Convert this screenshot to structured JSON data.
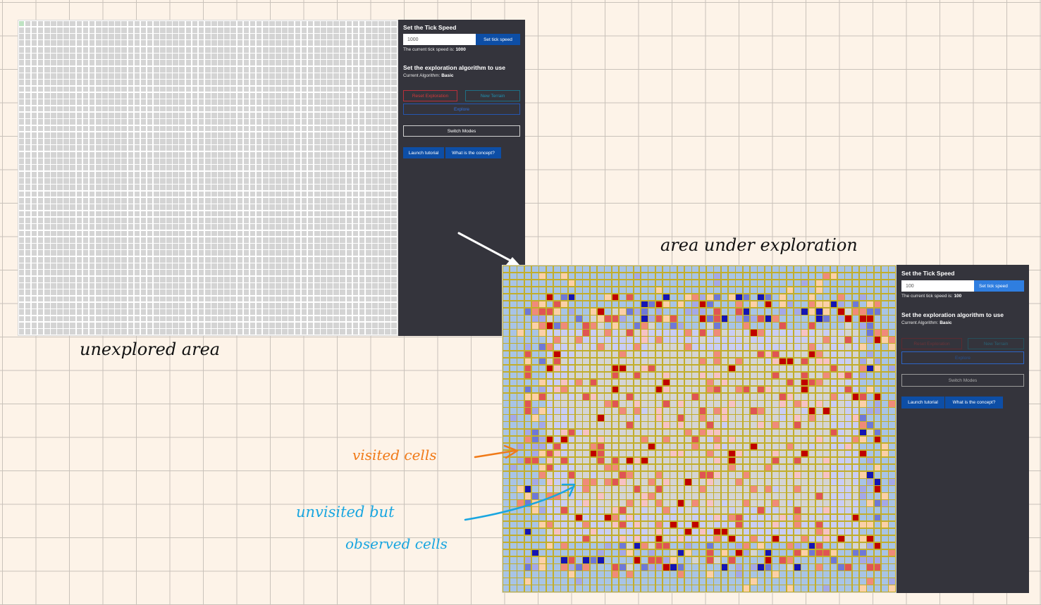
{
  "panel_unexplored": {
    "cols": 59,
    "rows": 48,
    "cell_color": "#d4d4d4",
    "start_cell_color": "#bfe3c3"
  },
  "panel_explored": {
    "cols": 54,
    "rows": 46,
    "gridline_color": "#c2ae2b",
    "palette": {
      "unobserved": "#a8c4e6",
      "observed_unvisited": "#c9cdf4",
      "visited": "#d4d4d4",
      "red_light": "#f6c2c4",
      "red_mid": "#f08a7a",
      "red": "#e05454",
      "red_dark": "#c00000",
      "orange_light": "#fbd0a8",
      "blue_light": "#a4a8e8",
      "blue_mid": "#6e78d8",
      "blue_dark": "#1414b4"
    }
  },
  "controls_1": {
    "tick_title": "Set the Tick Speed",
    "tick_value": "1000",
    "set_tick_label": "Set tick speed",
    "current_tick_prefix": "The current tick speed is:",
    "current_tick_value": "1000",
    "algo_title": "Set the exploration algorithm to use",
    "current_algo_prefix": "Current Algorithm:",
    "current_algo_value": "Basic",
    "reset_label": "Reset Exploration",
    "new_terrain_label": "New Terrain",
    "explore_label": "Explore",
    "switch_modes_label": "Switch Modes",
    "tutorial_label": "Launch tutorial",
    "concept_label": "What is the concept?"
  },
  "controls_2": {
    "tick_title": "Set the Tick Speed",
    "tick_value": "100",
    "set_tick_label": "Set tick speed",
    "current_tick_prefix": "The current tick speed is:",
    "current_tick_value": "100",
    "algo_title": "Set the exploration algorithm to use",
    "current_algo_prefix": "Current Algorithm:",
    "current_algo_value": "Basic",
    "reset_label": "Reset Exploration",
    "new_terrain_label": "New Terrain",
    "explore_label": "Explore",
    "switch_modes_label": "Switch Modes",
    "tutorial_label": "Launch tutorial",
    "concept_label": "What is the concept?"
  },
  "annotations": {
    "unexplored": "unexplored   area",
    "under_exploration": "area  under  exploration",
    "visited": "visited cells",
    "unvisited_1": "unvisited  but",
    "unvisited_2": "observed cells",
    "colors": {
      "dark_ink": "#111111",
      "orange_ink": "#f07a18",
      "blue_ink": "#1aa6e0",
      "arrow_white": "#ffffff"
    }
  }
}
